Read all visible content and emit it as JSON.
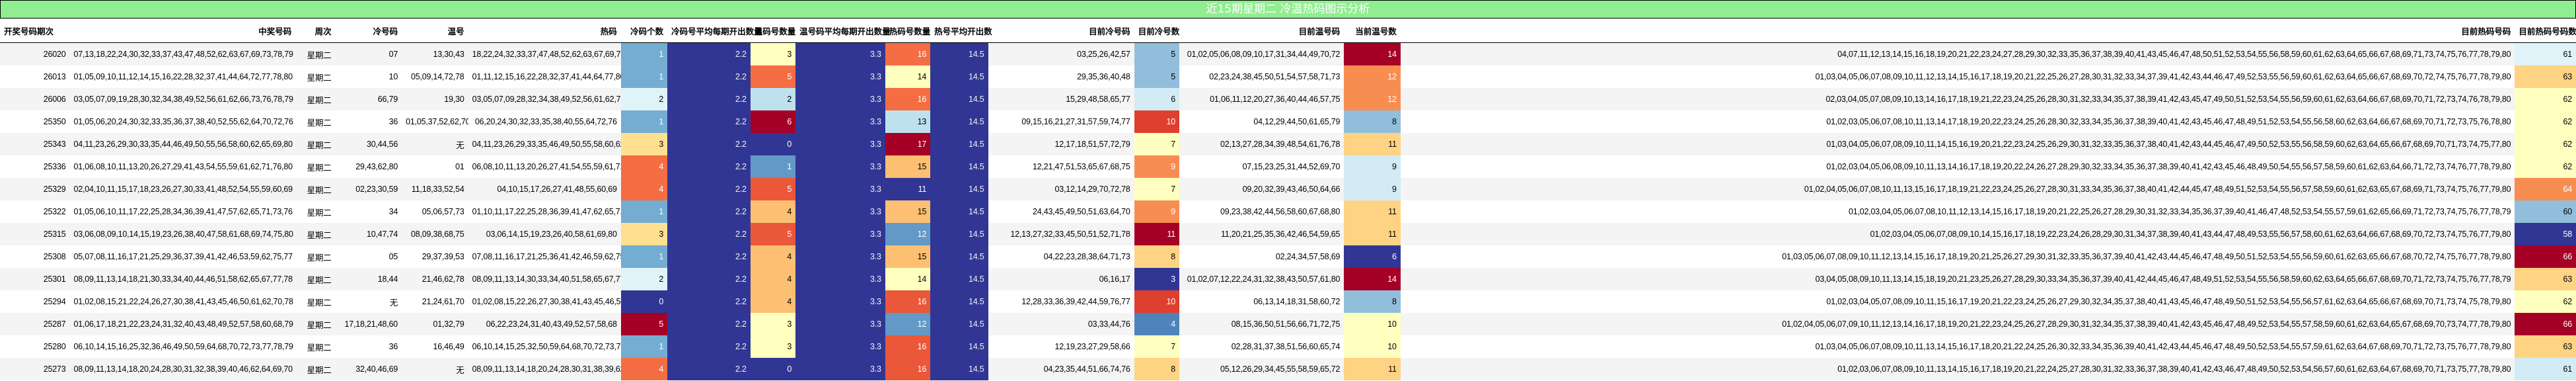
{
  "title": "近15期星期二 冷温热码图示分析",
  "columns": [
    "开奖号码期次",
    "中奖号码",
    "周次",
    "冷号码",
    "温号",
    "热码",
    "冷码个数",
    "冷码号平均每期开出数量",
    "温码号数量",
    "温号码平均每期开出数量",
    "热码号数量",
    "热号平均开出数",
    "目前冷号码",
    "目前冷号数",
    "目前温号码",
    "当前温号数",
    "目前热码号码",
    "目前热码号码数量"
  ],
  "colors": {
    "title_bg": "#90ee90",
    "navy": "#313695",
    "dark_red": "#a50026",
    "red": "#d73027",
    "orange_red": "#f46d43",
    "orange": "#fdae61",
    "light_orange": "#fee090",
    "pale_yellow": "#ffffbf",
    "pale_blue": "#e0f3f8",
    "light_blue": "#abd9e9",
    "mid_blue": "#74add1",
    "blue": "#4575b4"
  },
  "rows": [
    {
      "period": "26020",
      "numbers": "07,13,18,22,24,30,32,33,37,43,47,48,52,62,63,67,69,73,78,79",
      "weekday": "星期二",
      "cold": "07",
      "warm": "13,30,43",
      "hot": "18,22,24,32,33,37,47,48,52,62,63,67,69,73,78,79",
      "cold_count": "1",
      "cold_avg": "2.2",
      "warm_count": "3",
      "warm_avg": "3.3",
      "hot_count": "16",
      "hot_avg": "14.5",
      "cur_cold": "03,25,26,42,57",
      "cur_cold_count": "5",
      "cur_warm": "01,02,05,06,08,09,10,17,31,34,44,49,70,72",
      "cur_warm_count": "14",
      "cur_hot": "04,07,11,12,13,14,15,16,18,19,20,21,22,23,24,27,28,29,30,32,33,35,36,37,38,39,40,41,43,45,46,47,48,50,51,52,53,54,55,56,58,59,60,61,62,63,64,65,66,67,68,69,71,73,74,75,76,77,78,79,80",
      "cur_hot_count": "61",
      "c_cold_count": "#74add1",
      "c_warm_count": "#ffffbf",
      "c_hot_count": "#f46d43",
      "c_cur_cold_count": "#91bfdb",
      "c_cur_warm_count": "#a50026",
      "c_cur_hot_count": "#e0f3f8"
    },
    {
      "period": "26013",
      "numbers": "01,05,09,10,11,12,14,15,16,22,28,32,37,41,44,64,72,77,78,80",
      "weekday": "星期二",
      "cold": "10",
      "warm": "05,09,14,72,78",
      "hot": "01,11,12,15,16,22,28,32,37,41,44,64,77,80",
      "cold_count": "1",
      "cold_avg": "2.2",
      "warm_count": "5",
      "warm_avg": "3.3",
      "hot_count": "14",
      "hot_avg": "14.5",
      "cur_cold": "29,35,36,40,48",
      "cur_cold_count": "5",
      "cur_warm": "02,23,24,38,45,50,51,54,57,58,71,73",
      "cur_warm_count": "12",
      "cur_hot": "01,03,04,05,06,07,08,09,10,11,12,13,14,15,16,17,18,19,20,21,22,25,26,27,28,30,31,32,33,34,37,39,41,42,43,44,46,47,49,52,53,55,56,59,60,61,62,63,64,65,66,67,68,69,70,72,74,75,76,77,78,79,80",
      "cur_hot_count": "63",
      "c_cold_count": "#74add1",
      "c_warm_count": "#f46d43",
      "c_hot_count": "#ffffbf",
      "c_cur_cold_count": "#91bfdb",
      "c_cur_warm_count": "#f88d52",
      "c_cur_hot_count": "#fed383"
    },
    {
      "period": "26006",
      "numbers": "03,05,07,09,19,28,30,32,34,38,49,52,56,61,62,66,73,76,78,79",
      "weekday": "星期二",
      "cold": "66,79",
      "warm": "19,30",
      "hot": "03,05,07,09,28,32,34,38,49,52,56,61,62,73,76,78",
      "cold_count": "2",
      "cold_avg": "2.2",
      "warm_count": "2",
      "warm_avg": "3.3",
      "hot_count": "16",
      "hot_avg": "14.5",
      "cur_cold": "15,29,48,58,65,77",
      "cur_cold_count": "6",
      "cur_warm": "01,06,11,12,20,27,36,40,44,46,57,75",
      "cur_warm_count": "12",
      "cur_hot": "02,03,04,05,07,08,09,10,13,14,16,17,18,19,21,22,23,24,25,26,28,30,31,32,33,34,35,37,38,39,41,42,43,45,47,49,50,51,52,53,54,55,56,59,60,61,62,63,64,66,67,68,69,70,71,72,73,74,76,78,79,80",
      "cur_hot_count": "62",
      "c_cold_count": "#e0f3f8",
      "c_warm_count": "#bde2ee",
      "c_hot_count": "#f46d43",
      "c_cur_cold_count": "#d3ebf4",
      "c_cur_warm_count": "#f88d52",
      "c_cur_hot_count": "#ffffbf"
    },
    {
      "period": "25350",
      "numbers": "01,05,06,20,24,30,32,33,35,36,37,38,40,52,55,62,64,70,72,76",
      "weekday": "星期二",
      "cold": "36",
      "warm": "01,05,37,52,62,70",
      "hot": "06,20,24,30,32,33,35,38,40,55,64,72,76",
      "cold_count": "1",
      "cold_avg": "2.2",
      "warm_count": "6",
      "warm_avg": "3.3",
      "hot_count": "13",
      "hot_avg": "14.5",
      "cur_cold": "09,15,16,21,27,31,57,59,74,77",
      "cur_cold_count": "10",
      "cur_warm": "04,12,29,44,50,61,65,79",
      "cur_warm_count": "8",
      "cur_hot": "01,02,03,05,06,07,08,10,11,13,14,17,18,19,20,22,23,24,25,26,28,30,32,33,34,35,36,37,38,39,40,41,42,43,45,46,47,48,49,51,52,53,54,55,56,58,60,62,63,64,66,67,68,69,70,71,72,73,75,76,78,80",
      "cur_hot_count": "62",
      "c_cold_count": "#74add1",
      "c_warm_count": "#a50026",
      "c_hot_count": "#bde2ee",
      "c_cur_cold_count": "#de3f2e",
      "c_cur_warm_count": "#91bfdb",
      "c_cur_hot_count": "#ffffbf"
    },
    {
      "period": "25343",
      "numbers": "04,11,23,26,29,30,33,35,44,46,49,50,55,56,58,60,62,65,69,80",
      "weekday": "星期二",
      "cold": "30,44,56",
      "warm": "无",
      "hot": "04,11,23,26,29,33,35,46,49,50,55,58,60,62,65,69,80",
      "cold_count": "3",
      "cold_avg": "2.2",
      "warm_count": "0",
      "warm_avg": "3.3",
      "hot_count": "17",
      "hot_avg": "14.5",
      "cur_cold": "12,17,18,51,57,72,79",
      "cur_cold_count": "7",
      "cur_warm": "02,13,27,28,34,39,48,54,61,76,78",
      "cur_warm_count": "11",
      "cur_hot": "01,03,04,05,06,07,08,09,10,11,14,15,16,19,20,21,22,23,24,25,26,29,30,31,32,33,35,36,37,38,40,41,42,43,44,45,46,47,49,50,52,53,55,56,58,59,60,62,63,64,65,66,67,68,69,70,71,73,74,75,77,80",
      "cur_hot_count": "62",
      "c_cold_count": "#fee090",
      "c_warm_count": "#313695",
      "c_hot_count": "#a50026",
      "c_cur_cold_count": "#ffffbf",
      "c_cur_warm_count": "#fed383",
      "c_cur_hot_count": "#ffffbf"
    },
    {
      "period": "25336",
      "numbers": "01,06,08,10,11,13,20,26,27,29,41,43,54,55,59,61,62,71,76,80",
      "weekday": "星期二",
      "cold": "29,43,62,80",
      "warm": "01",
      "hot": "06,08,10,11,13,20,26,27,41,54,55,59,61,71,76",
      "cold_count": "4",
      "cold_avg": "2.2",
      "warm_count": "1",
      "warm_avg": "3.3",
      "hot_count": "15",
      "hot_avg": "14.5",
      "cur_cold": "12,21,47,51,53,65,67,68,75",
      "cur_cold_count": "9",
      "cur_warm": "07,15,23,25,31,44,52,69,70",
      "cur_warm_count": "9",
      "cur_hot": "01,02,03,04,05,06,08,09,10,11,13,14,16,17,18,19,20,22,24,26,27,28,29,30,32,33,34,35,36,37,38,39,40,41,42,43,45,46,48,49,50,54,55,56,57,58,59,60,61,62,63,64,66,71,72,73,74,76,77,78,79,80",
      "cur_hot_count": "62",
      "c_cold_count": "#f46d43",
      "c_warm_count": "#6399c6",
      "c_hot_count": "#fdbf71",
      "c_cur_cold_count": "#f88d52",
      "c_cur_warm_count": "#d3ebf4",
      "c_cur_hot_count": "#ffffbf"
    },
    {
      "period": "25329",
      "numbers": "02,04,10,11,15,17,18,23,26,27,30,33,41,48,52,54,55,59,60,69",
      "weekday": "星期二",
      "cold": "02,23,30,59",
      "warm": "11,18,33,52,54",
      "hot": "04,10,15,17,26,27,41,48,55,60,69",
      "cold_count": "4",
      "cold_avg": "2.2",
      "warm_count": "5",
      "warm_avg": "3.3",
      "hot_count": "11",
      "hot_avg": "14.5",
      "cur_cold": "03,12,14,29,70,72,78",
      "cur_cold_count": "7",
      "cur_warm": "09,20,32,39,43,46,50,64,66",
      "cur_warm_count": "9",
      "cur_hot": "01,02,04,05,06,07,08,10,11,13,15,16,17,18,19,21,22,23,24,25,26,27,28,30,31,33,34,35,36,37,38,40,41,42,44,45,47,48,49,51,52,53,54,55,56,57,58,59,60,61,62,63,65,67,68,69,71,73,74,75,76,77,79,80",
      "cur_hot_count": "64",
      "c_cold_count": "#f46d43",
      "c_warm_count": "#ea5739",
      "c_hot_count": "#313695",
      "c_cur_cold_count": "#ffffbf",
      "c_cur_warm_count": "#d3ebf4",
      "c_cur_hot_count": "#f88d52"
    },
    {
      "period": "25322",
      "numbers": "01,05,06,10,11,17,22,25,28,34,36,39,41,47,57,62,65,71,73,76",
      "weekday": "星期二",
      "cold": "34",
      "warm": "05,06,57,73",
      "hot": "01,10,11,17,22,25,28,36,39,41,47,62,65,71,76",
      "cold_count": "1",
      "cold_avg": "2.2",
      "warm_count": "4",
      "warm_avg": "3.3",
      "hot_count": "15",
      "hot_avg": "14.5",
      "cur_cold": "24,43,45,49,50,51,63,64,70",
      "cur_cold_count": "9",
      "cur_warm": "09,23,38,42,44,56,58,60,67,68,80",
      "cur_warm_count": "11",
      "cur_hot": "01,02,03,04,05,06,07,08,10,11,12,13,14,15,16,17,18,19,20,21,22,25,26,27,28,29,30,31,32,33,34,35,36,37,39,40,41,46,47,48,52,53,54,55,57,59,61,62,65,66,69,71,72,73,74,75,76,77,78,79",
      "cur_hot_count": "60",
      "c_cold_count": "#74add1",
      "c_warm_count": "#fdbf71",
      "c_hot_count": "#fdbf71",
      "c_cur_cold_count": "#f88d52",
      "c_cur_warm_count": "#fed383",
      "c_cur_hot_count": "#91bfdb"
    },
    {
      "period": "25315",
      "numbers": "03,06,08,09,10,14,15,19,23,26,38,40,47,58,61,68,69,74,75,80",
      "weekday": "星期二",
      "cold": "10,47,74",
      "warm": "08,09,38,68,75",
      "hot": "03,06,14,15,19,23,26,40,58,61,69,80",
      "cold_count": "3",
      "cold_avg": "2.2",
      "warm_count": "5",
      "warm_avg": "3.3",
      "hot_count": "12",
      "hot_avg": "14.5",
      "cur_cold": "12,13,27,32,33,45,50,51,52,71,78",
      "cur_cold_count": "11",
      "cur_warm": "11,20,21,25,35,36,42,46,54,59,65",
      "cur_warm_count": "11",
      "cur_hot": "01,02,03,04,05,06,07,08,09,10,14,15,16,17,18,19,22,23,24,26,28,29,30,31,34,37,38,39,40,41,43,44,47,48,49,53,55,56,57,58,60,61,62,63,64,66,67,68,69,70,72,73,74,75,76,77,79,80",
      "cur_hot_count": "58",
      "c_cold_count": "#fee090",
      "c_warm_count": "#ea5739",
      "c_hot_count": "#6399c6",
      "c_cur_cold_count": "#a50026",
      "c_cur_warm_count": "#fed383",
      "c_cur_hot_count": "#313695"
    },
    {
      "period": "25308",
      "numbers": "05,07,08,11,16,17,21,25,29,36,37,39,41,42,46,53,59,62,75,77",
      "weekday": "星期二",
      "cold": "05",
      "warm": "29,37,39,53",
      "hot": "07,08,11,16,17,21,25,36,41,42,46,59,62,75,77",
      "cold_count": "1",
      "cold_avg": "2.2",
      "warm_count": "4",
      "warm_avg": "3.3",
      "hot_count": "15",
      "hot_avg": "14.5",
      "cur_cold": "04,22,23,28,38,64,71,73",
      "cur_cold_count": "8",
      "cur_warm": "02,24,34,57,58,69",
      "cur_warm_count": "6",
      "cur_hot": "01,03,05,06,07,08,09,10,11,12,13,14,15,16,17,18,19,20,21,25,26,27,29,30,31,32,33,35,36,37,39,40,41,42,43,44,45,46,47,48,49,50,51,52,53,54,55,56,59,60,61,62,63,65,66,67,68,70,72,74,75,76,77,78,79,80",
      "cur_hot_count": "66",
      "c_cold_count": "#74add1",
      "c_warm_count": "#fdbf71",
      "c_hot_count": "#fdbf71",
      "c_cur_cold_count": "#fed383",
      "c_cur_warm_count": "#313695",
      "c_cur_hot_count": "#a50026"
    },
    {
      "period": "25301",
      "numbers": "08,09,11,13,14,18,21,30,33,34,40,44,46,51,58,62,65,67,77,78",
      "weekday": "星期二",
      "cold": "18,44",
      "warm": "21,46,62,78",
      "hot": "08,09,11,13,14,30,33,34,40,51,58,65,67,77",
      "cold_count": "2",
      "cold_avg": "2.2",
      "warm_count": "4",
      "warm_avg": "3.3",
      "hot_count": "14",
      "hot_avg": "14.5",
      "cur_cold": "06,16,17",
      "cur_cold_count": "3",
      "cur_warm": "01,02,07,12,22,24,31,32,38,43,50,57,61,80",
      "cur_warm_count": "14",
      "cur_hot": "03,04,05,08,09,10,11,13,14,15,18,19,20,21,23,25,26,27,28,29,30,33,34,35,36,37,39,40,41,42,44,45,46,47,48,49,51,52,53,54,55,56,58,59,60,62,63,64,65,66,67,68,69,70,71,72,73,74,75,76,77,78,79",
      "cur_hot_count": "63",
      "c_cold_count": "#e0f3f8",
      "c_warm_count": "#fdbf71",
      "c_hot_count": "#ffffbf",
      "c_cur_cold_count": "#313695",
      "c_cur_warm_count": "#a50026",
      "c_cur_hot_count": "#fed383"
    },
    {
      "period": "25294",
      "numbers": "01,02,08,15,21,22,24,26,27,30,38,41,43,45,46,50,61,62,70,78",
      "weekday": "星期二",
      "cold": "无",
      "warm": "21,24,61,70",
      "hot": "01,02,08,15,22,26,27,30,38,41,43,45,46,50,62,78",
      "cold_count": "0",
      "cold_avg": "2.2",
      "warm_count": "4",
      "warm_avg": "3.3",
      "hot_count": "16",
      "hot_avg": "14.5",
      "cur_cold": "12,28,33,36,39,42,44,59,76,77",
      "cur_cold_count": "10",
      "cur_warm": "06,13,14,18,31,58,60,72",
      "cur_warm_count": "8",
      "cur_hot": "01,02,03,04,05,07,08,09,10,11,15,16,17,19,20,21,22,23,24,25,26,27,29,30,32,34,35,37,38,40,41,43,45,46,47,48,49,50,51,52,53,54,55,56,57,61,62,63,64,65,66,67,68,69,70,71,73,74,75,78,79,80",
      "cur_hot_count": "62",
      "c_cold_count": "#313695",
      "c_warm_count": "#fdbf71",
      "c_hot_count": "#ea5739",
      "c_cur_cold_count": "#de3f2e",
      "c_cur_warm_count": "#91bfdb",
      "c_cur_hot_count": "#ffffbf"
    },
    {
      "period": "25287",
      "numbers": "01,06,17,18,21,22,23,24,31,32,40,43,48,49,52,57,58,60,68,79",
      "weekday": "星期二",
      "cold": "17,18,21,48,60",
      "warm": "01,32,79",
      "hot": "06,22,23,24,31,40,43,49,52,57,58,68",
      "cold_count": "5",
      "cold_avg": "2.2",
      "warm_count": "3",
      "warm_avg": "3.3",
      "hot_count": "12",
      "hot_avg": "14.5",
      "cur_cold": "03,33,44,76",
      "cur_cold_count": "4",
      "cur_warm": "08,15,36,50,51,56,66,71,72,75",
      "cur_warm_count": "10",
      "cur_hot": "01,02,04,05,06,07,09,10,11,12,13,14,16,17,18,19,20,21,22,23,24,25,26,27,28,29,30,31,32,34,35,37,38,39,40,41,42,43,45,46,47,48,49,52,53,54,55,57,58,59,60,61,62,63,64,65,67,68,69,70,73,74,77,78,79,80",
      "cur_hot_count": "66",
      "c_cold_count": "#a50026",
      "c_warm_count": "#ffffbf",
      "c_hot_count": "#6399c6",
      "c_cur_cold_count": "#4f83bc",
      "c_cur_warm_count": "#ffffbf",
      "c_cur_hot_count": "#a50026"
    },
    {
      "period": "25280",
      "numbers": "06,10,14,15,16,25,32,36,46,49,50,59,64,68,70,72,73,77,78,79",
      "weekday": "星期二",
      "cold": "36",
      "warm": "16,46,49",
      "hot": "06,10,14,15,25,32,50,59,64,68,70,72,73,77,78,79",
      "cold_count": "1",
      "cold_avg": "2.2",
      "warm_count": "3",
      "warm_avg": "3.3",
      "hot_count": "16",
      "hot_avg": "14.5",
      "cur_cold": "12,19,23,27,29,58,66",
      "cur_cold_count": "7",
      "cur_warm": "02,28,31,37,38,51,56,60,65,74",
      "cur_warm_count": "10",
      "cur_hot": "01,03,04,05,06,07,08,09,10,11,13,14,15,16,17,18,20,21,22,24,25,26,30,32,33,34,35,36,39,40,41,42,43,44,45,46,47,48,49,50,52,53,54,55,57,59,61,62,63,64,67,68,69,70,71,72,73,75,76,77,78,79,80",
      "cur_hot_count": "63",
      "c_cold_count": "#74add1",
      "c_warm_count": "#ffffbf",
      "c_hot_count": "#ea5739",
      "c_cur_cold_count": "#ffffbf",
      "c_cur_warm_count": "#ffffbf",
      "c_cur_hot_count": "#fed383"
    },
    {
      "period": "25273",
      "numbers": "08,09,11,13,14,18,20,24,28,30,31,32,38,39,40,46,62,64,69,70",
      "weekday": "星期二",
      "cold": "32,40,46,69",
      "warm": "无",
      "hot": "08,09,11,13,14,18,20,24,28,30,31,38,39,62,64,70",
      "cold_count": "4",
      "cold_avg": "2.2",
      "warm_count": "0",
      "warm_avg": "3.3",
      "hot_count": "16",
      "hot_avg": "14.5",
      "cur_cold": "04,23,35,44,51,66,74,76",
      "cur_cold_count": "8",
      "cur_warm": "05,12,26,29,34,45,55,58,59,65,72",
      "cur_warm_count": "11",
      "cur_hot": "01,02,03,06,07,08,09,10,11,13,14,15,16,17,18,19,20,21,22,24,25,27,28,30,31,32,33,36,37,38,39,40,41,42,43,46,47,48,49,50,52,53,54,56,57,60,61,62,63,64,67,68,69,70,71,73,75,77,78,79,80",
      "cur_hot_count": "61",
      "c_cold_count": "#f46d43",
      "c_warm_count": "#313695",
      "c_hot_count": "#ea5739",
      "c_cur_cold_count": "#fed383",
      "c_cur_warm_count": "#fed383",
      "c_cur_hot_count": "#d3ebf4"
    }
  ]
}
